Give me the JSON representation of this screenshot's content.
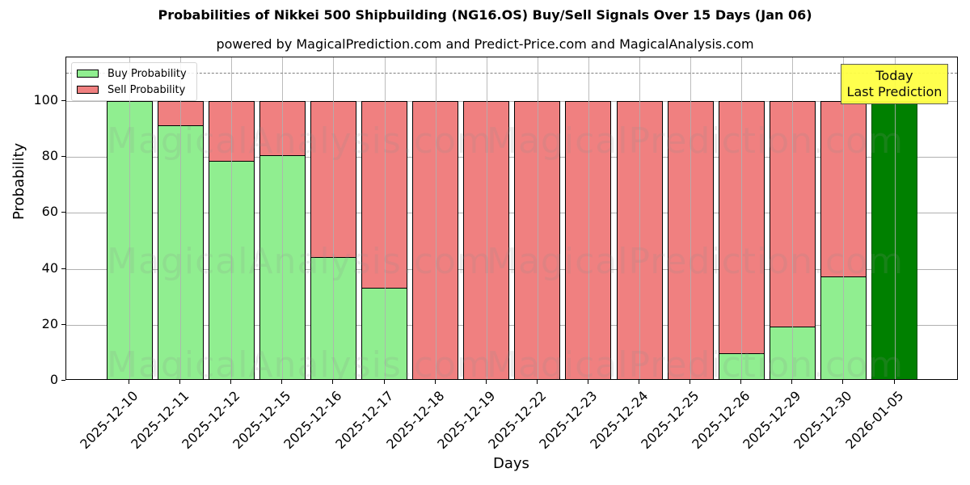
{
  "header": {
    "title": "Probabilities of Nikkei 500 Shipbuilding (NG16.OS) Buy/Sell Signals Over 15 Days (Jan 06)",
    "subtitle": "powered by MagicalPrediction.com and Predict-Price.com and MagicalAnalysis.com"
  },
  "legend": {
    "buy_label": "Buy Probability",
    "sell_label": "Sell Probability"
  },
  "annotation": {
    "line1": "Today",
    "line2": "Last Prediction"
  },
  "watermarks": {
    "left": "MagicalAnalysis.com",
    "right": "MagicalPrediction.com"
  },
  "colors": {
    "buy": "#90ee90",
    "sell": "#f08080",
    "today": "#008000",
    "annotation_bg": "#ffff44"
  },
  "axes": {
    "xlabel": "Days",
    "ylabel": "Probability",
    "yticks": [
      "0",
      "20",
      "40",
      "60",
      "80",
      "100"
    ]
  },
  "chart_data": {
    "type": "bar",
    "stacked": true,
    "title": "Probabilities of Nikkei 500 Shipbuilding (NG16.OS) Buy/Sell Signals Over 15 Days (Jan 06)",
    "subtitle": "powered by MagicalPrediction.com and Predict-Price.com and MagicalAnalysis.com",
    "xlabel": "Days",
    "ylabel": "Probability",
    "ylim": [
      0,
      115
    ],
    "yticks": [
      0,
      20,
      40,
      60,
      80,
      100
    ],
    "grid": true,
    "legend_position": "upper left",
    "reference_line": {
      "y": 110,
      "style": "dashed",
      "color": "#808080"
    },
    "categories": [
      "2025-12-10",
      "2025-12-11",
      "2025-12-12",
      "2025-12-15",
      "2025-12-16",
      "2025-12-17",
      "2025-12-18",
      "2025-12-19",
      "2025-12-22",
      "2025-12-23",
      "2025-12-24",
      "2025-12-25",
      "2025-12-26",
      "2025-12-29",
      "2025-12-30",
      "2026-01-05"
    ],
    "series": [
      {
        "name": "Buy Probability",
        "color": "#90ee90",
        "values": [
          100,
          91.3,
          78.6,
          80.6,
          44.2,
          33.2,
          0,
          0,
          0,
          0,
          0,
          0,
          9.8,
          19.4,
          37.3,
          100
        ]
      },
      {
        "name": "Sell Probability",
        "color": "#f08080",
        "values": [
          0,
          8.7,
          21.4,
          19.4,
          55.8,
          66.8,
          100,
          100,
          100,
          100,
          100,
          100,
          90.2,
          80.6,
          62.7,
          0
        ]
      }
    ],
    "highlight": {
      "category": "2026-01-05",
      "color": "#008000",
      "label": "Today Last Prediction"
    }
  }
}
